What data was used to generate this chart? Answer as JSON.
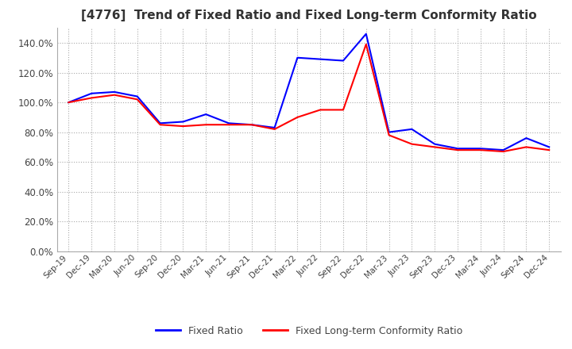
{
  "title": "[4776]  Trend of Fixed Ratio and Fixed Long-term Conformity Ratio",
  "title_fontsize": 11,
  "background_color": "#ffffff",
  "grid_color": "#aaaaaa",
  "fixed_ratio_color": "#0000ff",
  "fixed_ltcr_color": "#ff0000",
  "legend_labels": [
    "Fixed Ratio",
    "Fixed Long-term Conformity Ratio"
  ],
  "x_labels": [
    "Sep-19",
    "Dec-19",
    "Mar-20",
    "Jun-20",
    "Sep-20",
    "Dec-20",
    "Mar-21",
    "Jun-21",
    "Sep-21",
    "Dec-21",
    "Mar-22",
    "Jun-22",
    "Sep-22",
    "Dec-22",
    "Mar-23",
    "Jun-23",
    "Sep-23",
    "Dec-23",
    "Mar-24",
    "Jun-24",
    "Sep-24",
    "Dec-24"
  ],
  "fixed_ratio": [
    1.0,
    1.06,
    1.07,
    1.04,
    0.86,
    0.87,
    0.92,
    0.86,
    0.85,
    0.83,
    1.3,
    1.29,
    1.28,
    1.46,
    0.8,
    0.82,
    0.72,
    0.69,
    0.69,
    0.68,
    0.76,
    0.7
  ],
  "fixed_ltcr": [
    1.0,
    1.03,
    1.05,
    1.02,
    0.85,
    0.84,
    0.85,
    0.85,
    0.85,
    0.82,
    0.9,
    0.95,
    0.95,
    1.39,
    0.78,
    0.72,
    0.7,
    0.68,
    0.68,
    0.67,
    0.7,
    0.68
  ],
  "ylim": [
    0.0,
    1.5
  ],
  "yticks": [
    0.0,
    0.2,
    0.4,
    0.6,
    0.8,
    1.0,
    1.2,
    1.4
  ],
  "ytick_labels": [
    "0.0%",
    "20.0%",
    "40.0%",
    "60.0%",
    "80.0%",
    "100.0%",
    "120.0%",
    "140.0%"
  ]
}
